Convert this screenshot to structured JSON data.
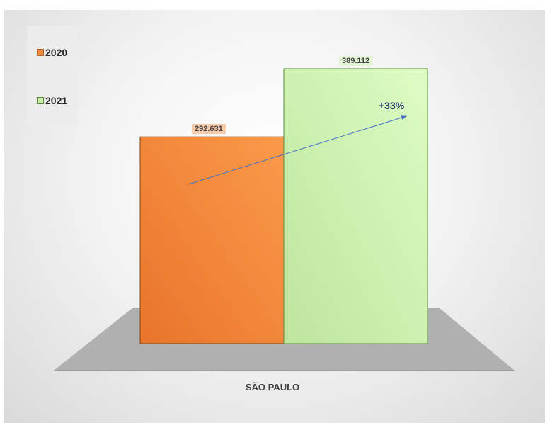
{
  "chart_data": {
    "type": "bar",
    "categories": [
      "SÃO PAULO"
    ],
    "series": [
      {
        "name": "2020",
        "values": [
          292631
        ],
        "label": "292.631",
        "color": "#f08a3a"
      },
      {
        "name": "2021",
        "values": [
          389112
        ],
        "label": "389.112",
        "color": "#c8eea8"
      }
    ],
    "annotation": "+33%",
    "legend_position": "top-left",
    "title": "",
    "xlabel": "",
    "ylabel": "",
    "grid": false,
    "style": "3d-floor"
  }
}
